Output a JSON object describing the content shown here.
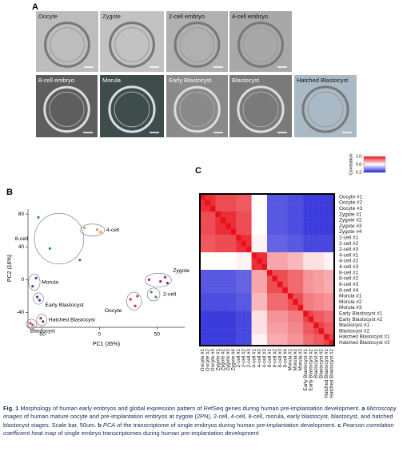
{
  "panel_labels": [
    "A",
    "B",
    "C"
  ],
  "images": [
    "Oocyte",
    "Zygote",
    "2-cell embryo",
    "4-cell embryo",
    "8-cell embryo",
    "Morula",
    "Early Blastocyst",
    "Blastocyst",
    "Hatched Blastocyst"
  ],
  "chart_data": [
    {
      "type": "scatter",
      "xlabel": "PC1 (35%)",
      "ylabel": "PC2 (16%)",
      "xlim": [
        -62,
        74
      ],
      "ylim": [
        -58,
        86
      ],
      "xticks": [
        -50,
        0,
        50
      ],
      "yticks": [
        80,
        40,
        0,
        -40
      ],
      "series": [
        {
          "name": "4-cell",
          "color": "#e8962a",
          "x": [
            -13,
            -2,
            1
          ],
          "y": [
            63,
            61,
            58
          ]
        },
        {
          "name": "8-cell",
          "color": "#2a9a3a",
          "x": [
            -53,
            -43,
            -17
          ],
          "y": [
            76,
            38,
            24
          ]
        },
        {
          "name": "Morula",
          "color": "#3a46c8",
          "x": [
            -58,
            -55
          ],
          "y": [
            -8,
            2
          ]
        },
        {
          "name": "Early Blastocyst",
          "color": "#5a3a8a",
          "x": [
            -54,
            -52
          ],
          "y": [
            -21,
            -25
          ]
        },
        {
          "name": "Hatched Blastocyst",
          "color": "#8a2a6a",
          "x": [
            -51,
            -49
          ],
          "y": [
            -47,
            -51
          ]
        },
        {
          "name": "Blastocyst",
          "color": "#e0402a",
          "x": [
            -60,
            -58
          ],
          "y": [
            -53,
            -55
          ]
        },
        {
          "name": "Zygote",
          "color": "#a0206a",
          "x": [
            43,
            53,
            57,
            59
          ],
          "y": [
            0,
            -2,
            3,
            -4
          ]
        },
        {
          "name": "2-cell",
          "color": "#4a9a3a",
          "x": [
            45,
            49
          ],
          "y": [
            -15,
            -21
          ]
        },
        {
          "name": "Oocyte",
          "color": "#d8302a",
          "x": [
            27,
            31,
            33
          ],
          "y": [
            -24,
            -32,
            -20
          ]
        }
      ]
    },
    {
      "type": "heatmap",
      "colorbar_title": "Correlation",
      "clim": [
        0.2,
        1.0
      ],
      "colorbar_ticks": [
        {
          "value": 1.0,
          "label": "1.0"
        },
        0.6,
        0.2
      ],
      "colors": [
        "#2020d8",
        "#ffffff",
        "#e8101a"
      ],
      "labels": [
        "Oocyte #1",
        "Oocyte #2",
        "Oocyte #3",
        "Zygote #1",
        "Zygote #2",
        "Zygote #3",
        "Zygote #4",
        "2-cell #1",
        "2-cell #2",
        "2-cell #3",
        "4-cell #1",
        "4-cell #2",
        "4-cell #3",
        "8-cell #1",
        "8-cell #2",
        "8-cell #3",
        "8-cell #4",
        "Morula #1",
        "Morula #2",
        "Morula #3",
        "Early Blastocyst #1",
        "Early Blastocyst #2",
        "Blastocyst #1",
        "Blastocyst #2",
        "Hatched Blastocyst #1",
        "Hatched Blastocyst #2"
      ],
      "values": [
        [
          1,
          0.95,
          0.95,
          0.9,
          0.9,
          0.9,
          0.9,
          0.88,
          0.88,
          0.88,
          0.6,
          0.6,
          0.6,
          0.3,
          0.3,
          0.3,
          0.3,
          0.28,
          0.28,
          0.28,
          0.25,
          0.25,
          0.25,
          0.25,
          0.25,
          0.25
        ],
        [
          0.95,
          1,
          0.95,
          0.9,
          0.9,
          0.9,
          0.9,
          0.88,
          0.88,
          0.88,
          0.6,
          0.6,
          0.6,
          0.3,
          0.3,
          0.3,
          0.3,
          0.28,
          0.28,
          0.28,
          0.25,
          0.25,
          0.25,
          0.25,
          0.25,
          0.25
        ],
        [
          0.95,
          0.95,
          1,
          0.9,
          0.9,
          0.9,
          0.9,
          0.88,
          0.88,
          0.88,
          0.6,
          0.6,
          0.6,
          0.3,
          0.3,
          0.3,
          0.3,
          0.28,
          0.28,
          0.28,
          0.25,
          0.25,
          0.25,
          0.25,
          0.25,
          0.25
        ],
        [
          0.9,
          0.9,
          0.9,
          1,
          0.95,
          0.95,
          0.95,
          0.9,
          0.9,
          0.9,
          0.6,
          0.6,
          0.6,
          0.3,
          0.3,
          0.3,
          0.3,
          0.28,
          0.28,
          0.28,
          0.25,
          0.25,
          0.25,
          0.25,
          0.25,
          0.25
        ],
        [
          0.9,
          0.9,
          0.9,
          0.95,
          1,
          0.95,
          0.95,
          0.9,
          0.9,
          0.9,
          0.6,
          0.6,
          0.6,
          0.3,
          0.3,
          0.3,
          0.3,
          0.28,
          0.28,
          0.28,
          0.25,
          0.25,
          0.25,
          0.25,
          0.25,
          0.25
        ],
        [
          0.9,
          0.9,
          0.9,
          0.95,
          0.95,
          1,
          0.95,
          0.9,
          0.9,
          0.9,
          0.6,
          0.6,
          0.6,
          0.3,
          0.3,
          0.3,
          0.3,
          0.28,
          0.28,
          0.28,
          0.25,
          0.25,
          0.25,
          0.25,
          0.25,
          0.25
        ],
        [
          0.9,
          0.9,
          0.9,
          0.95,
          0.95,
          0.95,
          1,
          0.9,
          0.9,
          0.9,
          0.6,
          0.6,
          0.6,
          0.3,
          0.3,
          0.3,
          0.3,
          0.28,
          0.28,
          0.28,
          0.25,
          0.25,
          0.25,
          0.25,
          0.25,
          0.25
        ],
        [
          0.88,
          0.88,
          0.88,
          0.9,
          0.9,
          0.9,
          0.9,
          1,
          0.95,
          0.95,
          0.62,
          0.62,
          0.62,
          0.32,
          0.32,
          0.32,
          0.32,
          0.3,
          0.3,
          0.3,
          0.27,
          0.27,
          0.27,
          0.27,
          0.27,
          0.27
        ],
        [
          0.88,
          0.88,
          0.88,
          0.9,
          0.9,
          0.9,
          0.9,
          0.95,
          1,
          0.95,
          0.62,
          0.62,
          0.62,
          0.32,
          0.32,
          0.32,
          0.32,
          0.3,
          0.3,
          0.3,
          0.27,
          0.27,
          0.27,
          0.27,
          0.27,
          0.27
        ],
        [
          0.88,
          0.88,
          0.88,
          0.9,
          0.9,
          0.9,
          0.9,
          0.95,
          0.95,
          1,
          0.62,
          0.62,
          0.62,
          0.32,
          0.32,
          0.32,
          0.32,
          0.3,
          0.3,
          0.3,
          0.27,
          0.27,
          0.27,
          0.27,
          0.27,
          0.27
        ],
        [
          0.6,
          0.6,
          0.6,
          0.6,
          0.6,
          0.6,
          0.6,
          0.62,
          0.62,
          0.62,
          1,
          0.95,
          0.95,
          0.75,
          0.75,
          0.75,
          0.75,
          0.72,
          0.72,
          0.72,
          0.65,
          0.65,
          0.65,
          0.65,
          0.62,
          0.62
        ],
        [
          0.6,
          0.6,
          0.6,
          0.6,
          0.6,
          0.6,
          0.6,
          0.62,
          0.62,
          0.62,
          0.95,
          1,
          0.95,
          0.75,
          0.75,
          0.75,
          0.75,
          0.72,
          0.72,
          0.72,
          0.65,
          0.65,
          0.65,
          0.65,
          0.62,
          0.62
        ],
        [
          0.6,
          0.6,
          0.6,
          0.6,
          0.6,
          0.6,
          0.6,
          0.62,
          0.62,
          0.62,
          0.95,
          0.95,
          1,
          0.75,
          0.75,
          0.75,
          0.75,
          0.72,
          0.72,
          0.72,
          0.65,
          0.65,
          0.65,
          0.65,
          0.62,
          0.62
        ],
        [
          0.3,
          0.3,
          0.3,
          0.3,
          0.3,
          0.3,
          0.3,
          0.32,
          0.32,
          0.32,
          0.75,
          0.75,
          0.75,
          1,
          0.9,
          0.9,
          0.9,
          0.85,
          0.85,
          0.85,
          0.78,
          0.78,
          0.76,
          0.76,
          0.74,
          0.74
        ],
        [
          0.3,
          0.3,
          0.3,
          0.3,
          0.3,
          0.3,
          0.3,
          0.32,
          0.32,
          0.32,
          0.75,
          0.75,
          0.75,
          0.9,
          1,
          0.9,
          0.9,
          0.85,
          0.85,
          0.85,
          0.78,
          0.78,
          0.76,
          0.76,
          0.74,
          0.74
        ],
        [
          0.3,
          0.3,
          0.3,
          0.3,
          0.3,
          0.3,
          0.3,
          0.32,
          0.32,
          0.32,
          0.75,
          0.75,
          0.75,
          0.9,
          0.9,
          1,
          0.9,
          0.85,
          0.85,
          0.85,
          0.78,
          0.78,
          0.76,
          0.76,
          0.74,
          0.74
        ],
        [
          0.3,
          0.3,
          0.3,
          0.3,
          0.3,
          0.3,
          0.3,
          0.32,
          0.32,
          0.32,
          0.75,
          0.75,
          0.75,
          0.9,
          0.9,
          0.9,
          1,
          0.85,
          0.85,
          0.85,
          0.78,
          0.78,
          0.76,
          0.76,
          0.74,
          0.74
        ],
        [
          0.28,
          0.28,
          0.28,
          0.28,
          0.28,
          0.28,
          0.28,
          0.3,
          0.3,
          0.3,
          0.72,
          0.72,
          0.72,
          0.85,
          0.85,
          0.85,
          0.85,
          1,
          0.9,
          0.9,
          0.82,
          0.82,
          0.8,
          0.8,
          0.78,
          0.78
        ],
        [
          0.28,
          0.28,
          0.28,
          0.28,
          0.28,
          0.28,
          0.28,
          0.3,
          0.3,
          0.3,
          0.72,
          0.72,
          0.72,
          0.85,
          0.85,
          0.85,
          0.85,
          0.9,
          1,
          0.9,
          0.82,
          0.82,
          0.8,
          0.8,
          0.78,
          0.78
        ],
        [
          0.28,
          0.28,
          0.28,
          0.28,
          0.28,
          0.28,
          0.28,
          0.3,
          0.3,
          0.3,
          0.72,
          0.72,
          0.72,
          0.85,
          0.85,
          0.85,
          0.85,
          0.9,
          0.9,
          1,
          0.82,
          0.82,
          0.8,
          0.8,
          0.78,
          0.78
        ],
        [
          0.25,
          0.25,
          0.25,
          0.25,
          0.25,
          0.25,
          0.25,
          0.27,
          0.27,
          0.27,
          0.65,
          0.65,
          0.65,
          0.78,
          0.78,
          0.78,
          0.78,
          0.82,
          0.82,
          0.82,
          1,
          0.92,
          0.88,
          0.88,
          0.85,
          0.85
        ],
        [
          0.25,
          0.25,
          0.25,
          0.25,
          0.25,
          0.25,
          0.25,
          0.27,
          0.27,
          0.27,
          0.65,
          0.65,
          0.65,
          0.78,
          0.78,
          0.78,
          0.78,
          0.82,
          0.82,
          0.82,
          0.92,
          1,
          0.88,
          0.88,
          0.85,
          0.85
        ],
        [
          0.25,
          0.25,
          0.25,
          0.25,
          0.25,
          0.25,
          0.25,
          0.27,
          0.27,
          0.27,
          0.65,
          0.65,
          0.65,
          0.76,
          0.76,
          0.76,
          0.76,
          0.8,
          0.8,
          0.8,
          0.88,
          0.88,
          1,
          0.92,
          0.88,
          0.88
        ],
        [
          0.25,
          0.25,
          0.25,
          0.25,
          0.25,
          0.25,
          0.25,
          0.27,
          0.27,
          0.27,
          0.65,
          0.65,
          0.65,
          0.76,
          0.76,
          0.76,
          0.76,
          0.8,
          0.8,
          0.8,
          0.88,
          0.88,
          0.92,
          1,
          0.88,
          0.88
        ],
        [
          0.25,
          0.25,
          0.25,
          0.25,
          0.25,
          0.25,
          0.25,
          0.27,
          0.27,
          0.27,
          0.62,
          0.62,
          0.62,
          0.74,
          0.74,
          0.74,
          0.74,
          0.78,
          0.78,
          0.78,
          0.85,
          0.85,
          0.88,
          0.88,
          1,
          0.92
        ],
        [
          0.25,
          0.25,
          0.25,
          0.25,
          0.25,
          0.25,
          0.25,
          0.27,
          0.27,
          0.27,
          0.62,
          0.62,
          0.62,
          0.74,
          0.74,
          0.74,
          0.74,
          0.78,
          0.78,
          0.78,
          0.85,
          0.85,
          0.88,
          0.88,
          0.92,
          1
        ]
      ]
    }
  ],
  "caption": [
    "Fig. 1",
    "Morphology of human early embryos and global expression pattern of RefSeq genes during human pre-implantation development.",
    "a",
    "Microscopy images",
    "of human mature oocyte and pre-implantation embryos at zygote (2PN), 2-cell, 4-cell, 8-cell, morula, early blastocyst, blastocyst, and hatched blastocyst stages. Scale bar, 50um.",
    "b",
    "PCA",
    "of the transcriptome of single embryos during human pre-implantation development.",
    "c",
    "Pearson correlation coefficient heat map",
    "of single embryo transcriptomes during human pre-implantation development"
  ]
}
